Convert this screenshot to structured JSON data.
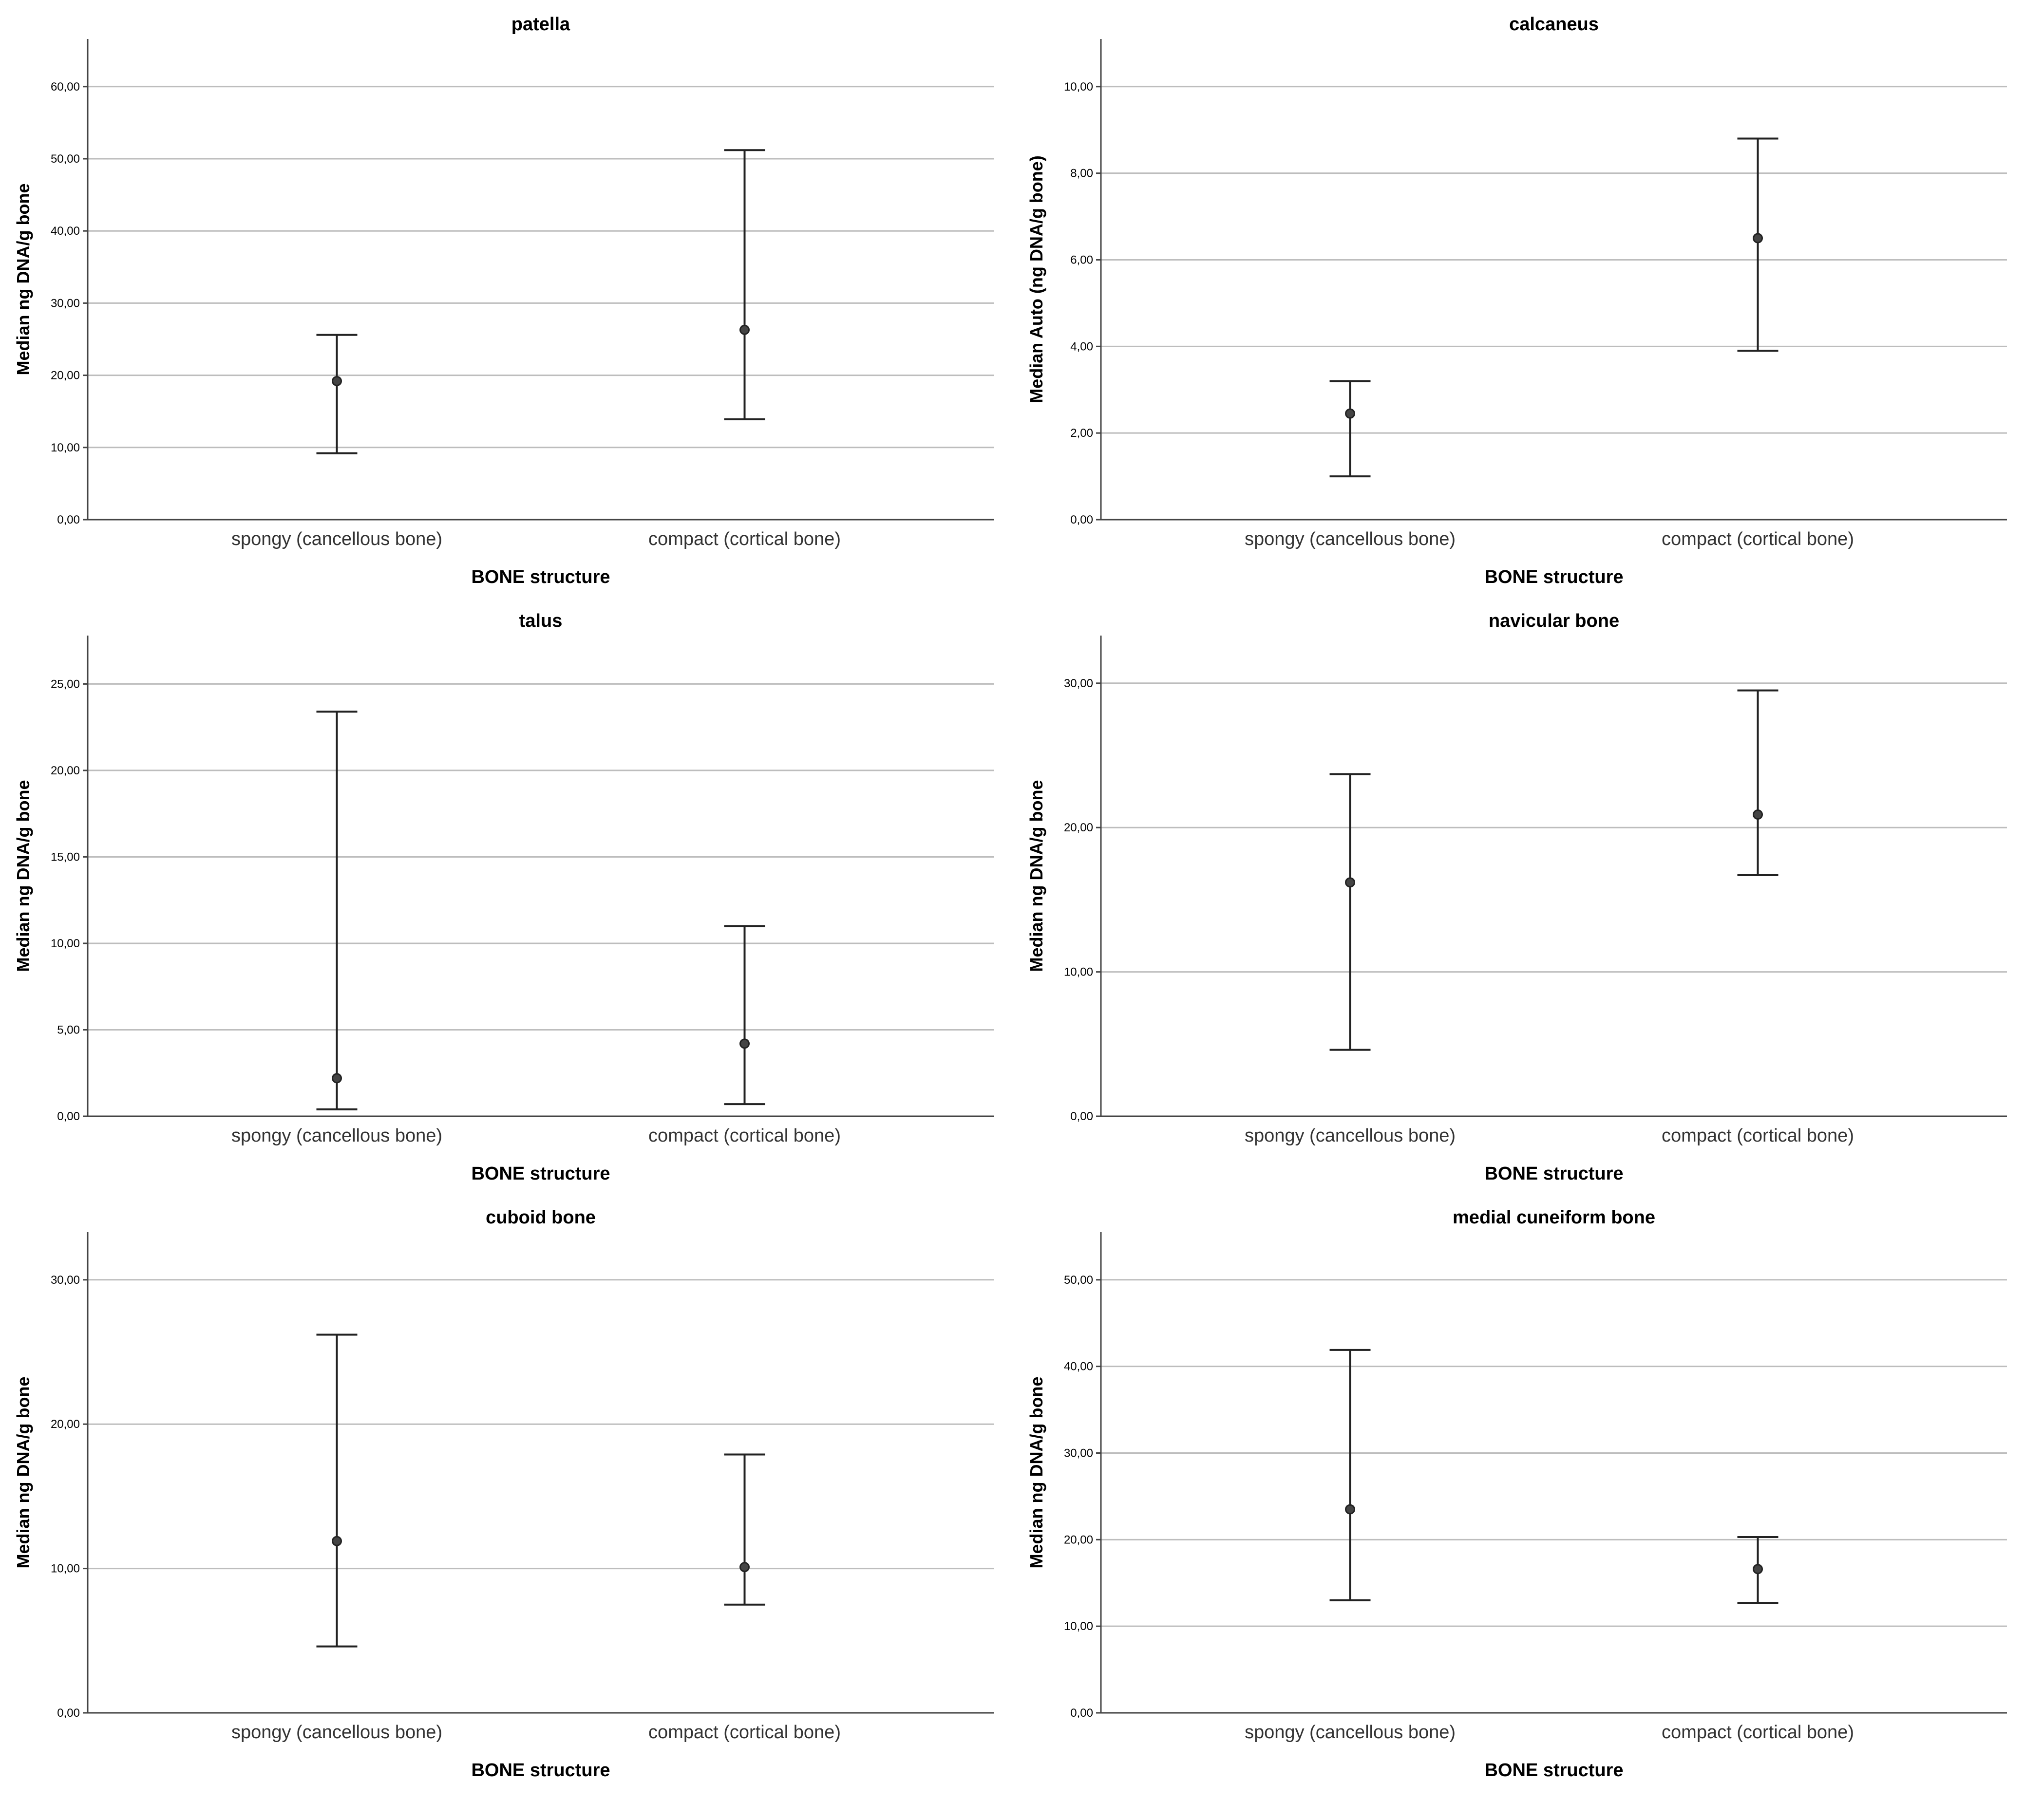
{
  "chart_data": [
    {
      "type": "errorbar",
      "title": "patella",
      "xlabel": "BONE structure",
      "ylabel": "Median ng DNA/g bone",
      "categories": [
        "spongy (cancellous bone)",
        "compact (cortical bone)"
      ],
      "median": [
        19.2,
        26.3
      ],
      "lower": [
        9.2,
        13.9
      ],
      "upper": [
        25.6,
        51.2
      ],
      "yticks": [
        "0,00",
        "10,00",
        "20,00",
        "30,00",
        "40,00",
        "50,00",
        "60,00"
      ],
      "ylim": [
        0,
        66.6
      ],
      "grid": true
    },
    {
      "type": "errorbar",
      "title": "calcaneus",
      "xlabel": "BONE structure",
      "ylabel": "Median Auto (ng DNA/g bone)",
      "categories": [
        "spongy (cancellous bone)",
        "compact (cortical bone)"
      ],
      "median": [
        2.45,
        6.5
      ],
      "lower": [
        1.0,
        3.9
      ],
      "upper": [
        3.2,
        8.8
      ],
      "yticks": [
        "0,00",
        "2,00",
        "4,00",
        "6,00",
        "8,00",
        "10,00"
      ],
      "ylim": [
        0,
        11.1
      ],
      "grid": true
    },
    {
      "type": "errorbar",
      "title": "talus",
      "xlabel": "BONE structure",
      "ylabel": "Median ng DNA/g bone",
      "categories": [
        "spongy (cancellous bone)",
        "compact (cortical bone)"
      ],
      "median": [
        2.2,
        4.2
      ],
      "lower": [
        0.4,
        0.7
      ],
      "upper": [
        23.4,
        11.0
      ],
      "yticks": [
        "0,00",
        "5,00",
        "10,00",
        "15,00",
        "20,00",
        "25,00"
      ],
      "ylim": [
        0,
        27.8
      ],
      "grid": true
    },
    {
      "type": "errorbar",
      "title": "navicular bone",
      "xlabel": "BONE structure",
      "ylabel": "Median ng DNA/g bone",
      "categories": [
        "spongy (cancellous bone)",
        "compact (cortical bone)"
      ],
      "median": [
        16.2,
        20.9
      ],
      "lower": [
        4.6,
        16.7
      ],
      "upper": [
        23.7,
        29.5
      ],
      "yticks": [
        "0,00",
        "10,00",
        "20,00",
        "30,00"
      ],
      "ylim": [
        0,
        33.3
      ],
      "grid": true
    },
    {
      "type": "errorbar",
      "title": "cuboid bone",
      "xlabel": "BONE structure",
      "ylabel": "Median ng DNA/g bone",
      "categories": [
        "spongy (cancellous bone)",
        "compact (cortical bone)"
      ],
      "median": [
        11.9,
        10.1
      ],
      "lower": [
        4.6,
        7.5
      ],
      "upper": [
        26.2,
        17.9
      ],
      "yticks": [
        "0,00",
        "10,00",
        "20,00",
        "30,00"
      ],
      "ylim": [
        0,
        33.3
      ],
      "grid": true
    },
    {
      "type": "errorbar",
      "title": "medial cuneiform bone",
      "xlabel": "BONE structure",
      "ylabel": "Median ng DNA/g bone",
      "categories": [
        "spongy (cancellous bone)",
        "compact (cortical bone)"
      ],
      "median": [
        23.5,
        16.6
      ],
      "lower": [
        13.0,
        12.7
      ],
      "upper": [
        41.9,
        20.3
      ],
      "yticks": [
        "0,00",
        "10,00",
        "20,00",
        "30,00",
        "40,00",
        "50,00"
      ],
      "ylim": [
        0,
        55.5
      ],
      "grid": true
    }
  ]
}
